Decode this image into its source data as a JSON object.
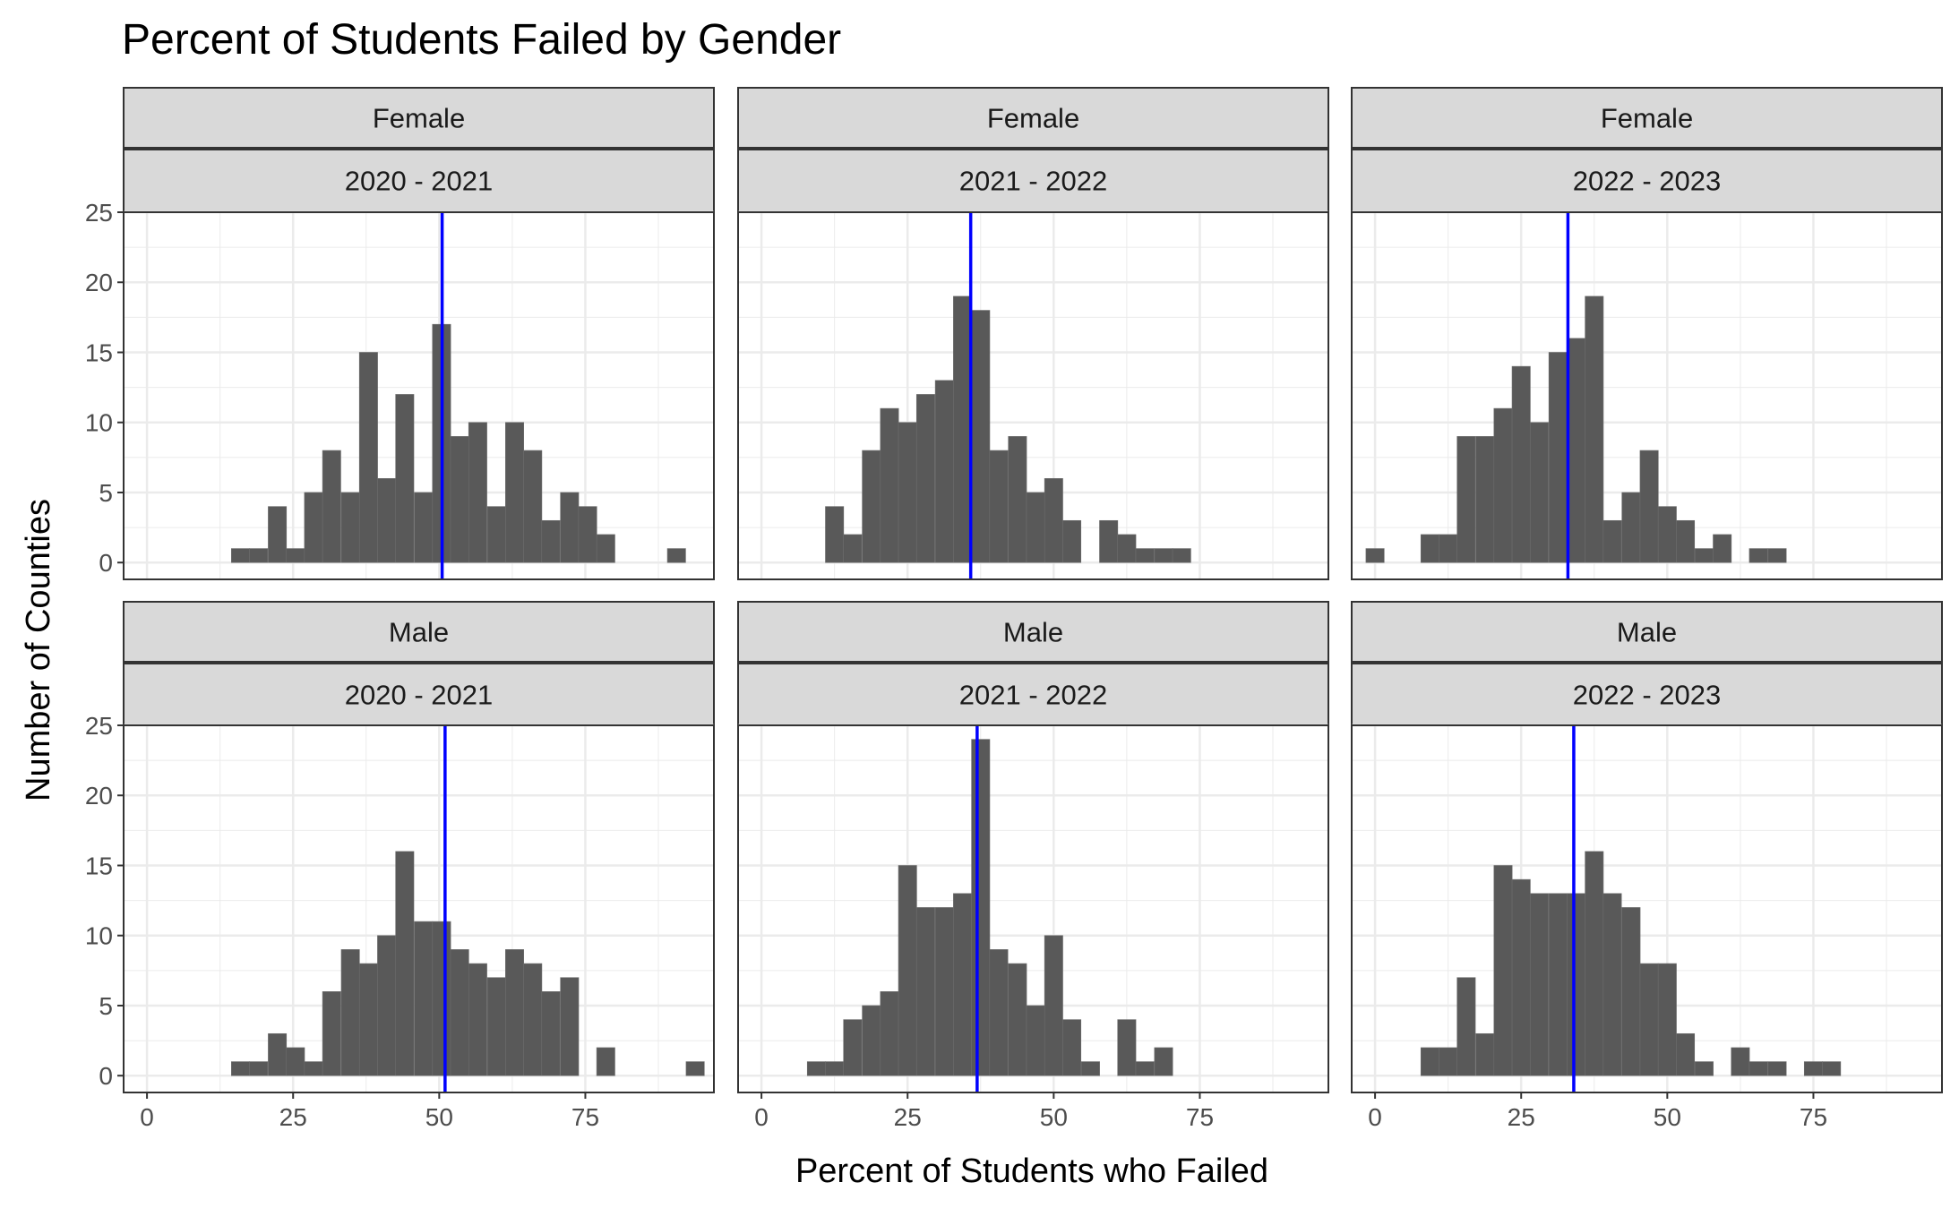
{
  "chart_data": {
    "type": "bar",
    "title": "Percent of Students Failed by Gender",
    "xlabel": "Percent of Students who Failed",
    "ylabel": "Number of Counties",
    "xlim": [
      -4,
      97
    ],
    "ylim": [
      -1.2,
      25
    ],
    "x_ticks": [
      0,
      25,
      50,
      75
    ],
    "y_ticks": [
      0,
      5,
      10,
      15,
      20,
      25
    ],
    "x_tick_labels": [
      "0",
      "25",
      "50",
      "75"
    ],
    "y_tick_labels": [
      "0",
      "5",
      "10",
      "15",
      "20",
      "25"
    ],
    "bin_width": 3.12,
    "grid": true,
    "bar_color": "#595959",
    "mean_line_color": "#0000ff",
    "strip_fill": "#d9d9d9",
    "panels": [
      {
        "gender": "Female",
        "year": "2020 - 2021",
        "mean": 50.5,
        "bins": [
          {
            "x": 16.0,
            "count": 1
          },
          {
            "x": 19.1,
            "count": 1
          },
          {
            "x": 22.3,
            "count": 4
          },
          {
            "x": 25.4,
            "count": 1
          },
          {
            "x": 28.5,
            "count": 5
          },
          {
            "x": 31.6,
            "count": 8
          },
          {
            "x": 34.8,
            "count": 5
          },
          {
            "x": 37.9,
            "count": 15
          },
          {
            "x": 41.0,
            "count": 6
          },
          {
            "x": 44.1,
            "count": 12
          },
          {
            "x": 47.3,
            "count": 5
          },
          {
            "x": 50.4,
            "count": 17
          },
          {
            "x": 53.5,
            "count": 9
          },
          {
            "x": 56.6,
            "count": 10
          },
          {
            "x": 59.8,
            "count": 4
          },
          {
            "x": 62.9,
            "count": 10
          },
          {
            "x": 66.0,
            "count": 8
          },
          {
            "x": 69.1,
            "count": 3
          },
          {
            "x": 72.3,
            "count": 5
          },
          {
            "x": 75.4,
            "count": 4
          },
          {
            "x": 78.5,
            "count": 2
          },
          {
            "x": 90.6,
            "count": 1
          }
        ]
      },
      {
        "gender": "Female",
        "year": "2021 - 2022",
        "mean": 35.8,
        "bins": [
          {
            "x": 12.5,
            "count": 4
          },
          {
            "x": 15.6,
            "count": 2
          },
          {
            "x": 18.8,
            "count": 8
          },
          {
            "x": 21.9,
            "count": 11
          },
          {
            "x": 25.0,
            "count": 10
          },
          {
            "x": 28.1,
            "count": 12
          },
          {
            "x": 31.3,
            "count": 13
          },
          {
            "x": 34.4,
            "count": 19
          },
          {
            "x": 37.5,
            "count": 18
          },
          {
            "x": 40.6,
            "count": 8
          },
          {
            "x": 43.8,
            "count": 9
          },
          {
            "x": 46.9,
            "count": 5
          },
          {
            "x": 50.0,
            "count": 6
          },
          {
            "x": 53.1,
            "count": 3
          },
          {
            "x": 59.4,
            "count": 3
          },
          {
            "x": 62.5,
            "count": 2
          },
          {
            "x": 65.6,
            "count": 1
          },
          {
            "x": 68.8,
            "count": 1
          },
          {
            "x": 71.9,
            "count": 1
          }
        ]
      },
      {
        "gender": "Female",
        "year": "2022 - 2023",
        "mean": 33.0,
        "bins": [
          {
            "x": 0.0,
            "count": 1
          },
          {
            "x": 9.4,
            "count": 2
          },
          {
            "x": 12.5,
            "count": 2
          },
          {
            "x": 15.6,
            "count": 9
          },
          {
            "x": 18.8,
            "count": 9
          },
          {
            "x": 21.9,
            "count": 11
          },
          {
            "x": 25.0,
            "count": 14
          },
          {
            "x": 28.1,
            "count": 10
          },
          {
            "x": 31.3,
            "count": 15
          },
          {
            "x": 34.4,
            "count": 16
          },
          {
            "x": 37.5,
            "count": 19
          },
          {
            "x": 40.6,
            "count": 3
          },
          {
            "x": 43.8,
            "count": 5
          },
          {
            "x": 46.9,
            "count": 8
          },
          {
            "x": 50.0,
            "count": 4
          },
          {
            "x": 53.1,
            "count": 3
          },
          {
            "x": 56.3,
            "count": 1
          },
          {
            "x": 59.4,
            "count": 2
          },
          {
            "x": 65.6,
            "count": 1
          },
          {
            "x": 68.8,
            "count": 1
          }
        ]
      },
      {
        "gender": "Male",
        "year": "2020 - 2021",
        "mean": 51.0,
        "bins": [
          {
            "x": 16.0,
            "count": 1
          },
          {
            "x": 19.1,
            "count": 1
          },
          {
            "x": 22.3,
            "count": 3
          },
          {
            "x": 25.4,
            "count": 2
          },
          {
            "x": 28.5,
            "count": 1
          },
          {
            "x": 31.6,
            "count": 6
          },
          {
            "x": 34.8,
            "count": 9
          },
          {
            "x": 37.9,
            "count": 8
          },
          {
            "x": 41.0,
            "count": 10
          },
          {
            "x": 44.1,
            "count": 16
          },
          {
            "x": 47.3,
            "count": 11
          },
          {
            "x": 50.4,
            "count": 11
          },
          {
            "x": 53.5,
            "count": 9
          },
          {
            "x": 56.6,
            "count": 8
          },
          {
            "x": 59.8,
            "count": 7
          },
          {
            "x": 62.9,
            "count": 9
          },
          {
            "x": 66.0,
            "count": 8
          },
          {
            "x": 69.1,
            "count": 6
          },
          {
            "x": 72.3,
            "count": 7
          },
          {
            "x": 78.5,
            "count": 2
          },
          {
            "x": 93.8,
            "count": 1
          }
        ]
      },
      {
        "gender": "Male",
        "year": "2021 - 2022",
        "mean": 36.9,
        "bins": [
          {
            "x": 9.4,
            "count": 1
          },
          {
            "x": 12.5,
            "count": 1
          },
          {
            "x": 15.6,
            "count": 4
          },
          {
            "x": 18.8,
            "count": 5
          },
          {
            "x": 21.9,
            "count": 6
          },
          {
            "x": 25.0,
            "count": 15
          },
          {
            "x": 28.1,
            "count": 12
          },
          {
            "x": 31.3,
            "count": 12
          },
          {
            "x": 34.4,
            "count": 13
          },
          {
            "x": 37.5,
            "count": 24
          },
          {
            "x": 40.6,
            "count": 9
          },
          {
            "x": 43.8,
            "count": 8
          },
          {
            "x": 46.9,
            "count": 5
          },
          {
            "x": 50.0,
            "count": 10
          },
          {
            "x": 53.1,
            "count": 4
          },
          {
            "x": 56.3,
            "count": 1
          },
          {
            "x": 62.5,
            "count": 4
          },
          {
            "x": 65.6,
            "count": 1
          },
          {
            "x": 68.8,
            "count": 2
          }
        ]
      },
      {
        "gender": "Male",
        "year": "2022 - 2023",
        "mean": 34.0,
        "bins": [
          {
            "x": 9.4,
            "count": 2
          },
          {
            "x": 12.5,
            "count": 2
          },
          {
            "x": 15.6,
            "count": 7
          },
          {
            "x": 18.8,
            "count": 3
          },
          {
            "x": 21.9,
            "count": 15
          },
          {
            "x": 25.0,
            "count": 14
          },
          {
            "x": 28.1,
            "count": 13
          },
          {
            "x": 31.3,
            "count": 13
          },
          {
            "x": 34.4,
            "count": 13
          },
          {
            "x": 37.5,
            "count": 16
          },
          {
            "x": 40.6,
            "count": 13
          },
          {
            "x": 43.8,
            "count": 12
          },
          {
            "x": 46.9,
            "count": 8
          },
          {
            "x": 50.0,
            "count": 8
          },
          {
            "x": 53.1,
            "count": 3
          },
          {
            "x": 56.3,
            "count": 1
          },
          {
            "x": 62.5,
            "count": 2
          },
          {
            "x": 65.6,
            "count": 1
          },
          {
            "x": 68.8,
            "count": 1
          },
          {
            "x": 75.0,
            "count": 1
          },
          {
            "x": 78.1,
            "count": 1
          }
        ]
      }
    ]
  }
}
